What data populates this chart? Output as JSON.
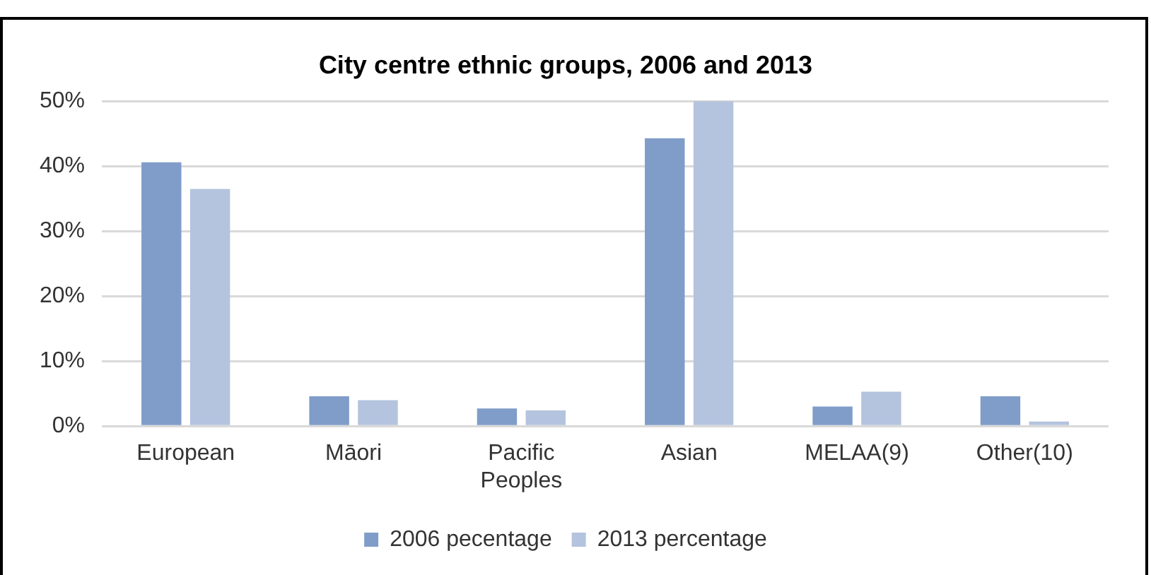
{
  "chart_data": {
    "type": "bar",
    "title": "City centre ethnic groups, 2006 and 2013",
    "categories": [
      "European",
      "Māori",
      "Pacific Peoples",
      "Asian",
      "MELAA(9)",
      "Other(10)"
    ],
    "series": [
      {
        "name": "2006 pecentage",
        "color": "#7f9dc8",
        "values": [
          40.6,
          4.6,
          2.7,
          44.3,
          3.0,
          4.6
        ]
      },
      {
        "name": "2013 percentage",
        "color": "#b4c3de",
        "values": [
          36.5,
          4.0,
          2.4,
          50.0,
          5.3,
          0.7
        ]
      }
    ],
    "ylim": [
      0,
      50
    ],
    "yticks": [
      {
        "value": 0,
        "label": "0%"
      },
      {
        "value": 10,
        "label": "10%"
      },
      {
        "value": 20,
        "label": "20%"
      },
      {
        "value": 30,
        "label": "30%"
      },
      {
        "value": 40,
        "label": "40%"
      },
      {
        "value": 50,
        "label": "50%"
      }
    ],
    "grid": "y",
    "legend": "bottom"
  }
}
